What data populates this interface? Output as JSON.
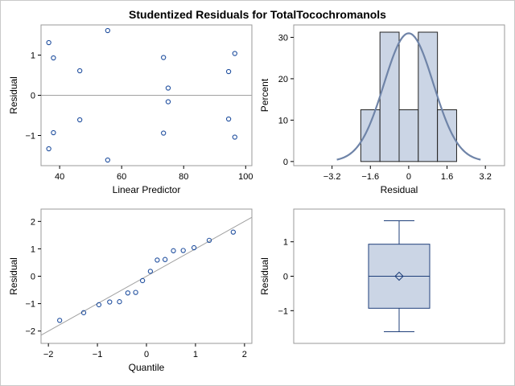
{
  "title": "Studentized Residuals for TotalTocochromanols",
  "colors": {
    "marker": "#1f4e9e",
    "reference_line": "#a0a0a0",
    "bar_fill": "#cbd5e5",
    "bar_stroke": "#222222",
    "density_curve": "#6f84a8",
    "box_fill": "#cbd5e5",
    "box_stroke": "#1f3f7a",
    "axis": "#000000"
  },
  "chart_data": [
    {
      "id": "residual-vs-predicted",
      "type": "scatter",
      "xlabel": "Linear Predictor",
      "ylabel": "Residual",
      "xlim": [
        34,
        102
      ],
      "ylim": [
        -1.75,
        1.75
      ],
      "xticks": [
        40,
        60,
        80,
        100
      ],
      "yticks": [
        -1,
        0,
        1
      ],
      "reference_y": 0,
      "points": [
        {
          "x": 36.5,
          "y": 1.31
        },
        {
          "x": 38,
          "y": 0.93
        },
        {
          "x": 38,
          "y": -0.93
        },
        {
          "x": 36.5,
          "y": -1.33
        },
        {
          "x": 46.5,
          "y": 0.61
        },
        {
          "x": 46.5,
          "y": -0.61
        },
        {
          "x": 55.5,
          "y": 1.61
        },
        {
          "x": 55.5,
          "y": -1.61
        },
        {
          "x": 73.5,
          "y": 0.94
        },
        {
          "x": 73.5,
          "y": -0.94
        },
        {
          "x": 75,
          "y": 0.18
        },
        {
          "x": 75,
          "y": -0.16
        },
        {
          "x": 94.5,
          "y": 0.59
        },
        {
          "x": 94.5,
          "y": -0.59
        },
        {
          "x": 96.5,
          "y": 1.04
        },
        {
          "x": 96.5,
          "y": -1.04
        }
      ]
    },
    {
      "id": "residual-histogram",
      "type": "bar",
      "xlabel": "Residual",
      "ylabel": "Percent",
      "xlim": [
        -4.8,
        4.0
      ],
      "ylim": [
        -1,
        33
      ],
      "xticks": [
        -3.2,
        -1.6,
        0,
        1.6,
        3.2
      ],
      "xtick_labels": [
        "-3.2",
        "-1.6",
        "0",
        "1.6",
        "3.2"
      ],
      "yticks": [
        0,
        10,
        20,
        30
      ],
      "bins": [
        {
          "from": -2.0,
          "to": -1.2,
          "percent": 12.5
        },
        {
          "from": -1.2,
          "to": -0.4,
          "percent": 31.25
        },
        {
          "from": -0.4,
          "to": 0.4,
          "percent": 12.5
        },
        {
          "from": 0.4,
          "to": 1.2,
          "percent": 31.25
        },
        {
          "from": 1.2,
          "to": 2.0,
          "percent": 12.5
        }
      ],
      "density": {
        "type": "normal",
        "mean": 0,
        "sd": 1.03,
        "bin_width": 0.8,
        "from": -3.0,
        "to": 3.0
      }
    },
    {
      "id": "normal-qq",
      "type": "scatter",
      "xlabel": "Quantile",
      "ylabel": "Residual",
      "xlim": [
        -2.15,
        2.15
      ],
      "ylim": [
        -2.45,
        2.45
      ],
      "xticks": [
        -2,
        -1,
        0,
        1,
        2
      ],
      "yticks": [
        -2,
        -1,
        0,
        1,
        2
      ],
      "reference_line": {
        "intercept": 0,
        "slope": 1
      },
      "points": [
        {
          "x": -1.77,
          "y": -1.61
        },
        {
          "x": -1.28,
          "y": -1.33
        },
        {
          "x": -0.97,
          "y": -1.04
        },
        {
          "x": -0.75,
          "y": -0.94
        },
        {
          "x": -0.55,
          "y": -0.93
        },
        {
          "x": -0.38,
          "y": -0.61
        },
        {
          "x": -0.22,
          "y": -0.59
        },
        {
          "x": -0.08,
          "y": -0.16
        },
        {
          "x": 0.08,
          "y": 0.18
        },
        {
          "x": 0.22,
          "y": 0.59
        },
        {
          "x": 0.38,
          "y": 0.61
        },
        {
          "x": 0.55,
          "y": 0.93
        },
        {
          "x": 0.75,
          "y": 0.94
        },
        {
          "x": 0.97,
          "y": 1.04
        },
        {
          "x": 1.28,
          "y": 1.31
        },
        {
          "x": 1.77,
          "y": 1.61
        }
      ]
    },
    {
      "id": "residual-boxplot",
      "type": "box",
      "xlabel": "",
      "ylabel": "Residual",
      "ylim": [
        -1.95,
        1.95
      ],
      "yticks": [
        -1,
        0,
        1
      ],
      "box": {
        "min": -1.61,
        "q1": -0.93,
        "median": 0.0,
        "mean": 0.0,
        "q3": 0.93,
        "max": 1.61
      }
    }
  ]
}
